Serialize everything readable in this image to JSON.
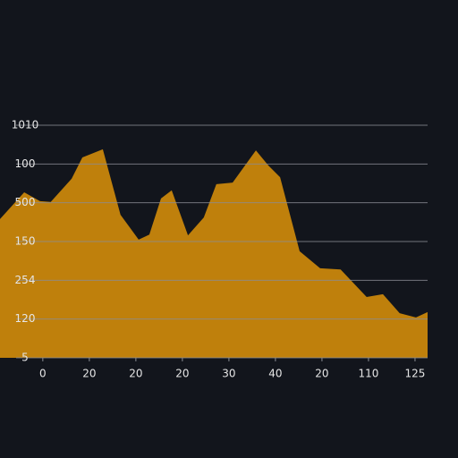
{
  "chart_data": {
    "type": "area",
    "color": "#bf800c",
    "grid": true,
    "x": [
      -0.92,
      -0.4,
      -0.06,
      0.17,
      0.62,
      0.85,
      1.29,
      1.67,
      2.06,
      2.29,
      2.54,
      2.77,
      3.12,
      3.46,
      3.73,
      4.08,
      4.58,
      4.85,
      5.1,
      5.52,
      5.96,
      6.4,
      6.96,
      7.31,
      7.67,
      8.02,
      8.27
    ],
    "values": [
      3.58,
      4.27,
      4.04,
      4.02,
      4.62,
      5.17,
      5.38,
      3.69,
      3.05,
      3.18,
      4.11,
      4.32,
      3.16,
      3.62,
      4.48,
      4.52,
      5.35,
      4.96,
      4.66,
      2.75,
      2.31,
      2.28,
      1.57,
      1.64,
      1.15,
      1.04,
      1.18
    ],
    "xlim": [
      -0.92,
      8.27
    ],
    "xticks": [
      {
        "value": 0,
        "label": "0"
      },
      {
        "value": 1,
        "label": "20"
      },
      {
        "value": 2,
        "label": "20"
      },
      {
        "value": 3,
        "label": "20"
      },
      {
        "value": 4,
        "label": "30"
      },
      {
        "value": 5,
        "label": "40"
      },
      {
        "value": 6,
        "label": "20"
      },
      {
        "value": 7,
        "label": "110"
      },
      {
        "value": 8,
        "label": "125"
      }
    ],
    "ylim": [
      0,
      6
    ],
    "yticks": [
      {
        "value": 0,
        "label": "5"
      },
      {
        "value": 1,
        "label": "120"
      },
      {
        "value": 2,
        "label": "254"
      },
      {
        "value": 3,
        "label": "150"
      },
      {
        "value": 4,
        "label": "500"
      },
      {
        "value": 5,
        "label": "100"
      },
      {
        "value": 6,
        "label": "1010"
      }
    ]
  }
}
